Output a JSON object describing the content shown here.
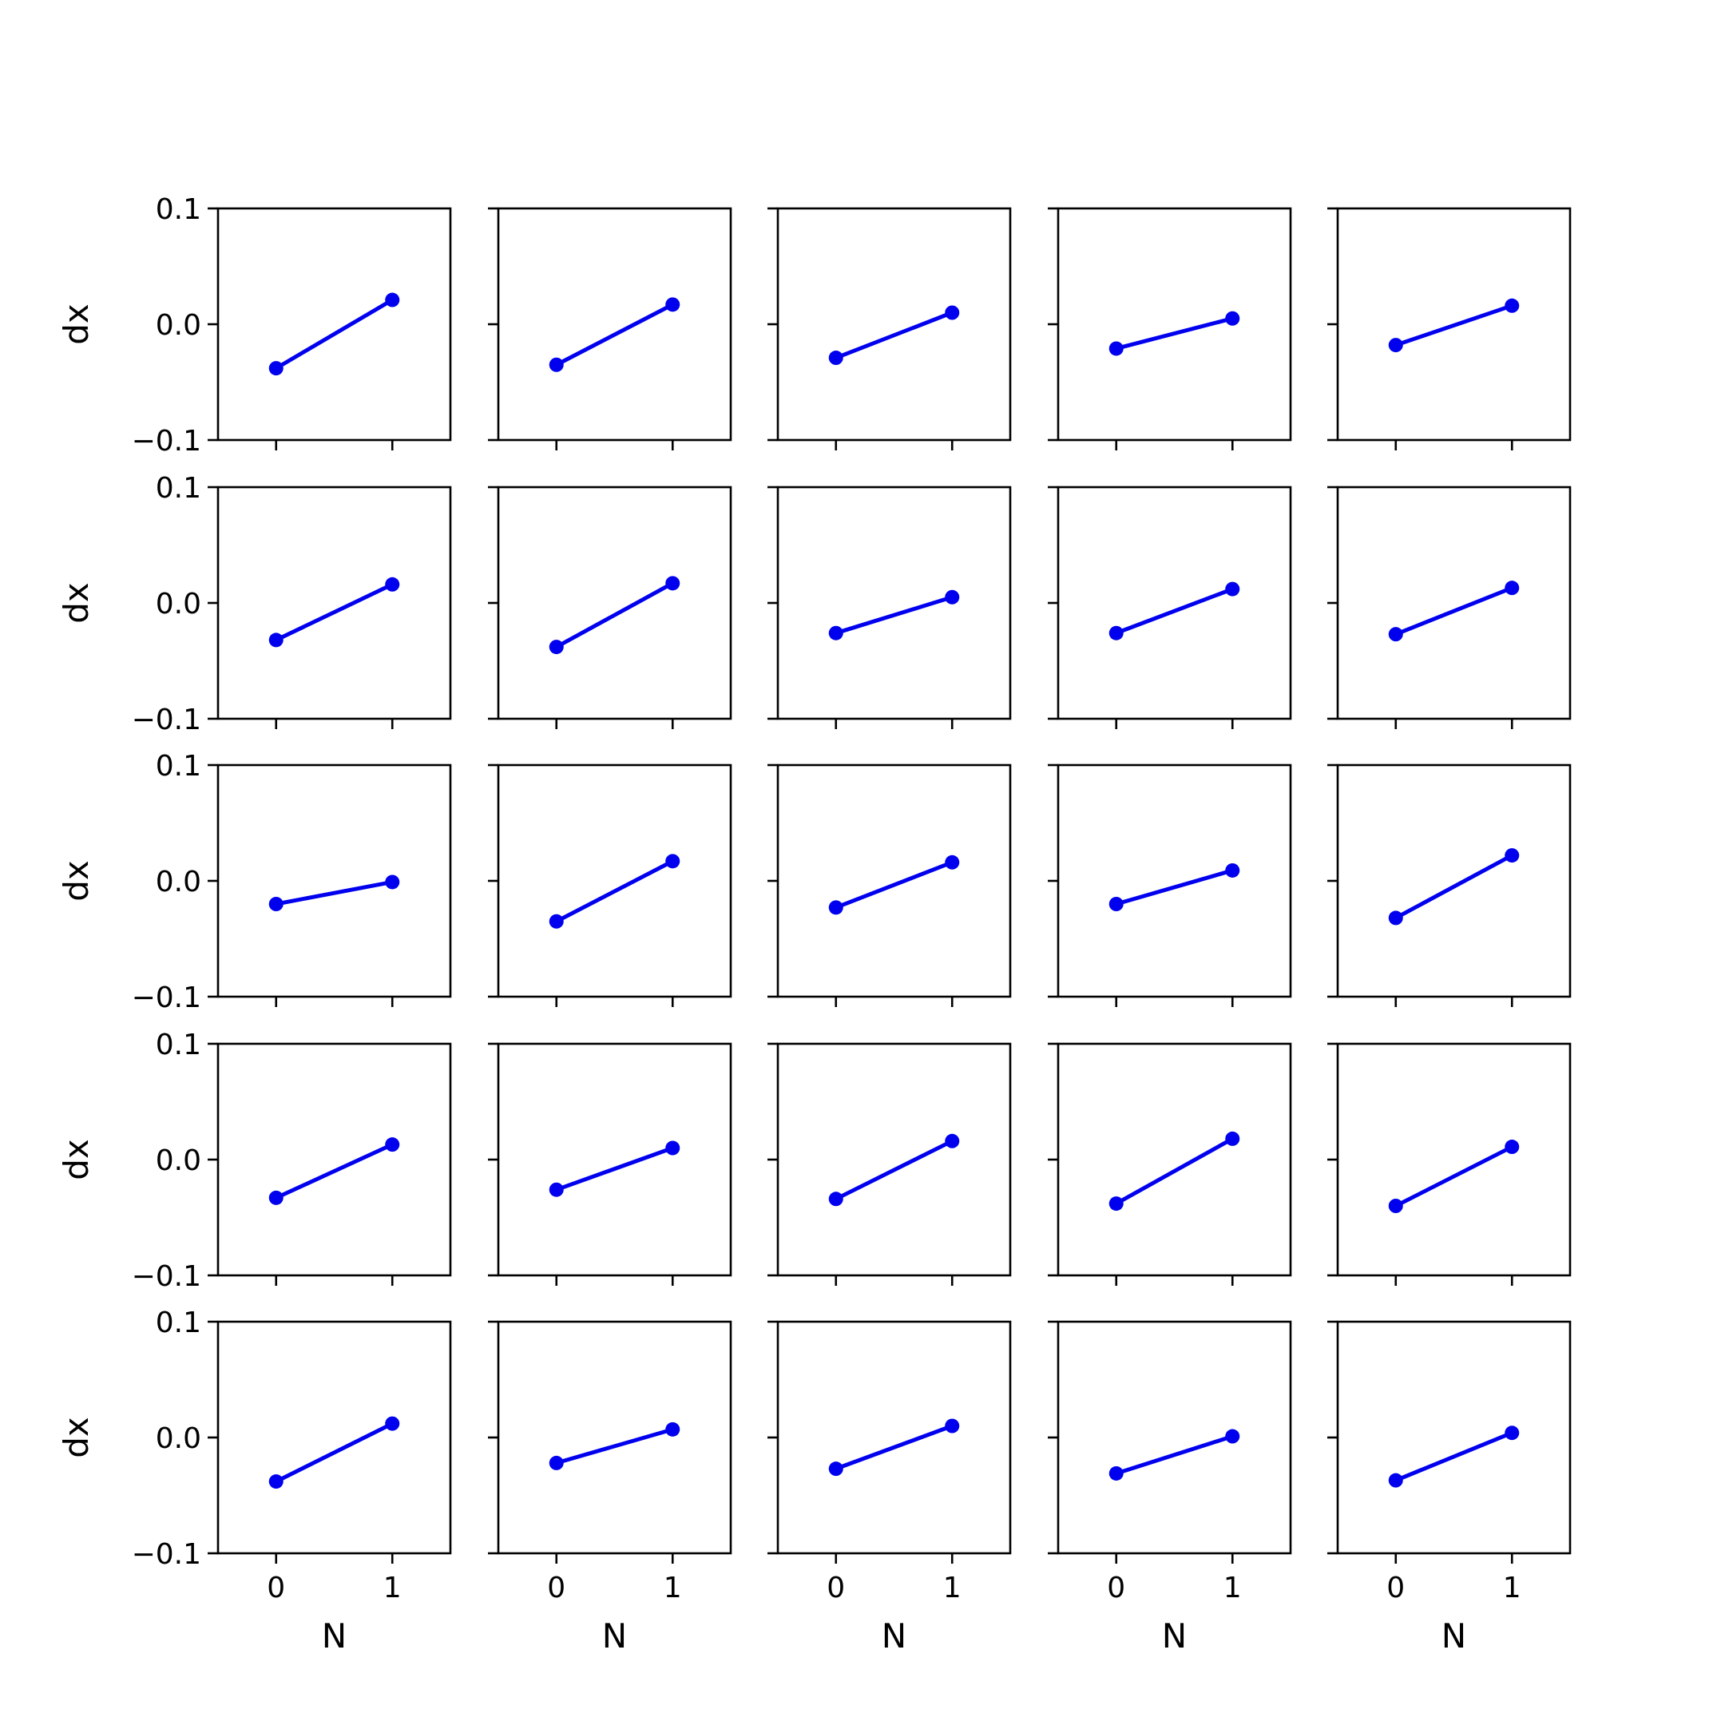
{
  "chart_data": {
    "type": "line",
    "layout": {
      "rows": 5,
      "cols": 5,
      "sharex": true,
      "sharey": true
    },
    "x": [
      0,
      1
    ],
    "xlabel": "N",
    "ylabel": "dx",
    "xticks": [
      0,
      1
    ],
    "xtick_labels": [
      "0",
      "1"
    ],
    "yticks": [
      -0.1,
      0.0,
      0.1
    ],
    "ytick_labels": [
      "−0.1",
      "0.0",
      "0.1"
    ],
    "xlim": [
      -0.5,
      1.5
    ],
    "ylim": [
      -0.1,
      0.1
    ],
    "grid": false,
    "line_color": "#0000ee",
    "panels": [
      [
        [
          -0.038,
          0.021
        ],
        [
          -0.035,
          0.017
        ],
        [
          -0.029,
          0.01
        ],
        [
          -0.021,
          0.005
        ],
        [
          -0.018,
          0.016
        ]
      ],
      [
        [
          -0.032,
          0.016
        ],
        [
          -0.038,
          0.017
        ],
        [
          -0.026,
          0.005
        ],
        [
          -0.026,
          0.012
        ],
        [
          -0.027,
          0.013
        ]
      ],
      [
        [
          -0.02,
          -0.001
        ],
        [
          -0.035,
          0.017
        ],
        [
          -0.023,
          0.016
        ],
        [
          -0.02,
          0.009
        ],
        [
          -0.032,
          0.022
        ]
      ],
      [
        [
          -0.033,
          0.013
        ],
        [
          -0.026,
          0.01
        ],
        [
          -0.034,
          0.016
        ],
        [
          -0.038,
          0.018
        ],
        [
          -0.04,
          0.011
        ]
      ],
      [
        [
          -0.038,
          0.012
        ],
        [
          -0.022,
          0.007
        ],
        [
          -0.027,
          0.01
        ],
        [
          -0.031,
          0.001
        ],
        [
          -0.037,
          0.004
        ]
      ]
    ]
  }
}
